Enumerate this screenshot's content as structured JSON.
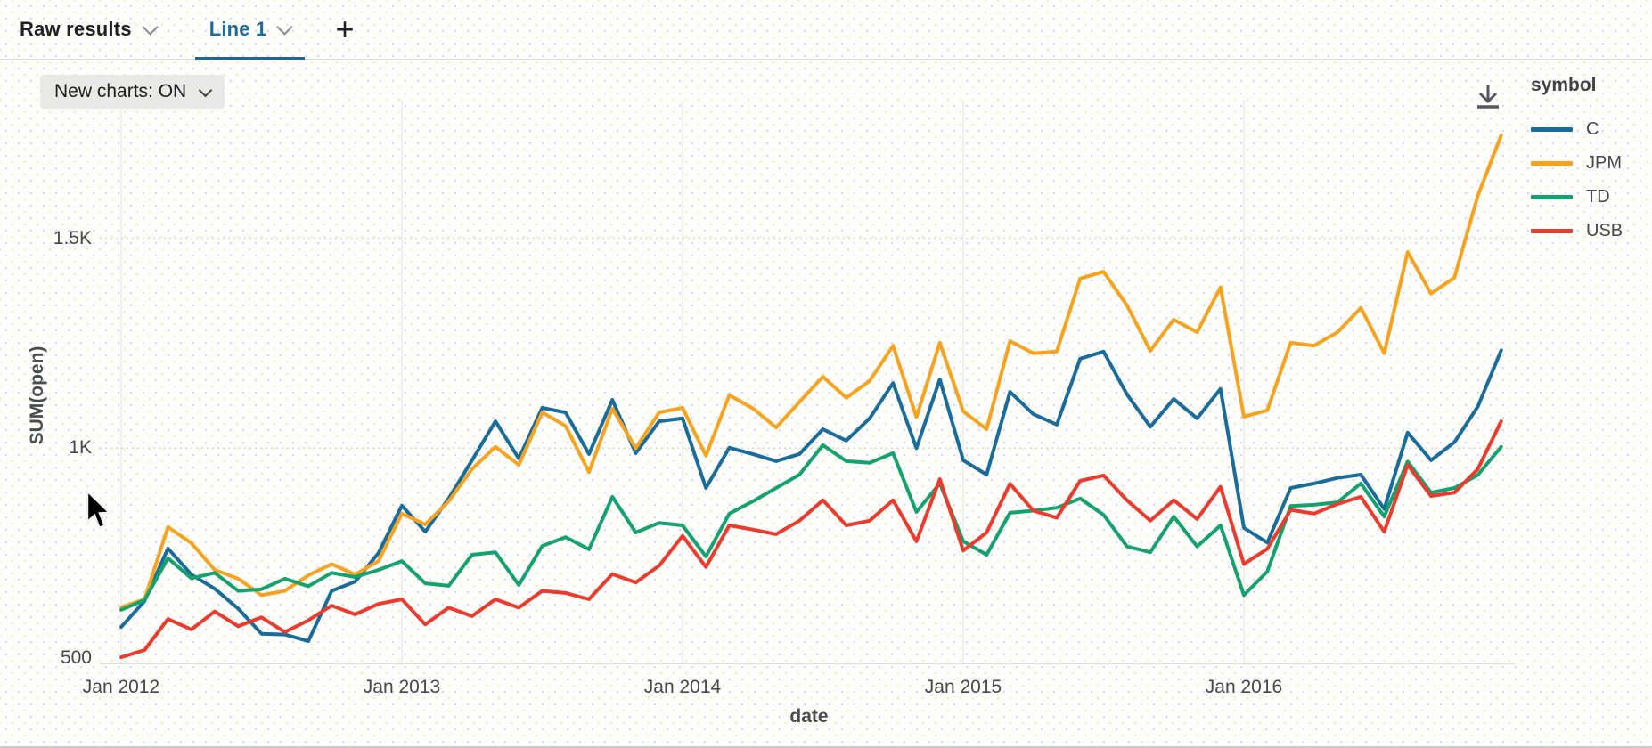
{
  "tab_bar": {
    "tabs": [
      {
        "label": "Raw results",
        "active": false
      },
      {
        "label": "Line 1",
        "active": true
      }
    ],
    "add_tab_label": "+"
  },
  "toolbar": {
    "new_charts_label": "New charts: ON"
  },
  "icons": {
    "download": "download-icon",
    "chevron": "chevron-down-icon",
    "plus": "plus-icon",
    "cursor": "mouse-pointer"
  },
  "legend": {
    "title": "symbol",
    "items": [
      {
        "label": "C",
        "color": "#1a6d9b"
      },
      {
        "label": "JPM",
        "color": "#f6a41f"
      },
      {
        "label": "TD",
        "color": "#14a26e"
      },
      {
        "label": "USB",
        "color": "#ec3a2d"
      }
    ]
  },
  "colors": {
    "accent_tab": "#1c6a9e",
    "tab_underline": "#1d6793",
    "gridline_vertical": "#ececec",
    "gridline_horizontal": "#d8d8e2",
    "axis_line": "#d2d2d2",
    "axis_text": "#46484a",
    "button_bg": "#e9e9e8"
  },
  "chart_data": {
    "type": "line",
    "title": "",
    "xlabel": "date",
    "ylabel": "SUM(open)",
    "x_ticks": [
      "Jan 2012",
      "Jan 2013",
      "Jan 2014",
      "Jan 2015",
      "Jan 2016"
    ],
    "y_ticks": [
      {
        "label": "500",
        "value": 500
      },
      {
        "label": "1K",
        "value": 1000
      },
      {
        "label": "1.5K",
        "value": 1500
      }
    ],
    "ylim": [
      487,
      1830
    ],
    "grid": true,
    "legend_position": "right",
    "x": [
      "2012-01",
      "2012-02",
      "2012-03",
      "2012-04",
      "2012-05",
      "2012-06",
      "2012-07",
      "2012-08",
      "2012-09",
      "2012-10",
      "2012-11",
      "2012-12",
      "2013-01",
      "2013-02",
      "2013-03",
      "2013-04",
      "2013-05",
      "2013-06",
      "2013-07",
      "2013-08",
      "2013-09",
      "2013-10",
      "2013-11",
      "2013-12",
      "2014-01",
      "2014-02",
      "2014-03",
      "2014-04",
      "2014-05",
      "2014-06",
      "2014-07",
      "2014-08",
      "2014-09",
      "2014-10",
      "2014-11",
      "2014-12",
      "2015-01",
      "2015-02",
      "2015-03",
      "2015-04",
      "2015-05",
      "2015-06",
      "2015-07",
      "2015-08",
      "2015-09",
      "2015-10",
      "2015-11",
      "2015-12",
      "2016-01",
      "2016-02",
      "2016-03",
      "2016-04",
      "2016-05",
      "2016-06",
      "2016-07",
      "2016-08",
      "2016-09",
      "2016-10",
      "2016-11",
      "2016-12"
    ],
    "series": [
      {
        "name": "C",
        "color": "#1a6d9b",
        "values": [
          574,
          636,
          761,
          699,
          665,
          618,
          558,
          556,
          540,
          660,
          682,
          750,
          863,
          801,
          880,
          971,
          1064,
          975,
          1096,
          1085,
          986,
          1115,
          988,
          1064,
          1071,
          905,
          1001,
          986,
          969,
          986,
          1045,
          1018,
          1071,
          1155,
          1000,
          1164,
          971,
          937,
          1134,
          1081,
          1056,
          1213,
          1230,
          1128,
          1051,
          1117,
          1071,
          1141,
          810,
          775,
          905,
          916,
          929,
          937,
          855,
          1037,
          971,
          1014,
          1099,
          1233
        ]
      },
      {
        "name": "JPM",
        "color": "#f6a41f",
        "values": [
          621,
          640,
          812,
          774,
          710,
          689,
          650,
          660,
          697,
          724,
          699,
          731,
          844,
          818,
          873,
          950,
          1003,
          960,
          1085,
          1053,
          943,
          1094,
          1000,
          1085,
          1096,
          982,
          1126,
          1095,
          1049,
          1110,
          1170,
          1120,
          1160,
          1244,
          1074,
          1251,
          1088,
          1045,
          1255,
          1226,
          1230,
          1404,
          1420,
          1340,
          1232,
          1306,
          1276,
          1383,
          1075,
          1090,
          1251,
          1244,
          1276,
          1334,
          1226,
          1467,
          1368,
          1406,
          1601,
          1745
        ]
      },
      {
        "name": "TD",
        "color": "#14a26e",
        "values": [
          615,
          638,
          738,
          690,
          703,
          660,
          664,
          689,
          671,
          703,
          693,
          710,
          731,
          678,
          672,
          746,
          752,
          674,
          767,
          788,
          759,
          884,
          799,
          822,
          816,
          742,
          844,
          873,
          905,
          937,
          1007,
          969,
          965,
          988,
          848,
          916,
          778,
          746,
          846,
          851,
          858,
          880,
          841,
          766,
          752,
          837,
          766,
          816,
          650,
          706,
          862,
          865,
          871,
          916,
          837,
          968,
          894,
          905,
          936,
          1003
        ]
      },
      {
        "name": "USB",
        "color": "#ec3a2d",
        "values": [
          502,
          519,
          593,
          568,
          611,
          576,
          597,
          562,
          590,
          625,
          604,
          629,
          640,
          580,
          620,
          600,
          640,
          620,
          660,
          655,
          640,
          700,
          680,
          720,
          791,
          717,
          816,
          806,
          795,
          827,
          876,
          816,
          827,
          876,
          778,
          926,
          756,
          799,
          915,
          851,
          834,
          922,
          935,
          876,
          827,
          876,
          831,
          908,
          724,
          760,
          853,
          844,
          867,
          884,
          801,
          960,
          886,
          894,
          950,
          1064
        ]
      }
    ]
  }
}
